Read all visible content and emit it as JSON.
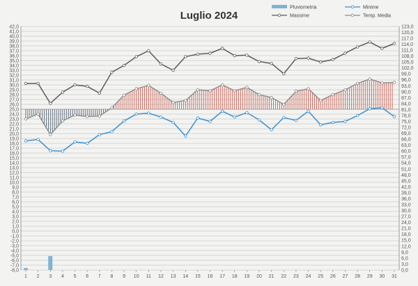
{
  "chart_data": {
    "type": "line",
    "title": "Luglio 2024",
    "categories": [
      "1",
      "2",
      "3",
      "4",
      "5",
      "6",
      "7",
      "8",
      "9",
      "10",
      "11",
      "12",
      "13",
      "14",
      "15",
      "16",
      "17",
      "18",
      "19",
      "20",
      "21",
      "22",
      "23",
      "24",
      "25",
      "26",
      "27",
      "28",
      "29",
      "30",
      "31"
    ],
    "left_axis": {
      "min": -8,
      "max": 42,
      "step": 1
    },
    "right_axis": {
      "min": 0,
      "max": 123,
      "step": 3
    },
    "series": [
      {
        "name": "Pluviometria",
        "kind": "bar",
        "axis": "right",
        "color": "#7fb3d5",
        "values": [
          1,
          0,
          7,
          0,
          0,
          0,
          0,
          0,
          0,
          0,
          0,
          0,
          0,
          0,
          0,
          0,
          0,
          0,
          0,
          0,
          0,
          0,
          0,
          0,
          0,
          0,
          0,
          0,
          0,
          0,
          0
        ]
      },
      {
        "name": "Minime",
        "kind": "line",
        "axis": "left",
        "color": "#3a8fd0",
        "values": [
          18.5,
          18.8,
          16.5,
          16.4,
          18.3,
          18.0,
          19.8,
          20.4,
          22.6,
          24.0,
          24.2,
          23.4,
          22.3,
          19.5,
          23.2,
          22.5,
          24.6,
          23.4,
          24.3,
          22.8,
          20.8,
          23.3,
          22.7,
          24.6,
          21.8,
          22.3,
          22.5,
          23.7,
          25.1,
          25.3,
          23.5
        ]
      },
      {
        "name": "Massime",
        "kind": "line",
        "axis": "left",
        "color": "#5a5a5a",
        "values": [
          30.3,
          30.3,
          26.2,
          28.5,
          30.0,
          29.7,
          28.3,
          32.6,
          34.0,
          35.8,
          37.0,
          34.3,
          33.0,
          35.8,
          36.3,
          36.5,
          37.5,
          36.0,
          36.1,
          34.8,
          34.4,
          32.3,
          35.4,
          35.5,
          34.7,
          35.2,
          36.5,
          37.8,
          38.8,
          37.5,
          38.5
        ]
      },
      {
        "name": "Temp. Media",
        "kind": "line",
        "axis": "left",
        "color": "#8a8a8a",
        "values": [
          23.0,
          24.0,
          19.8,
          22.6,
          23.8,
          23.5,
          23.6,
          25.3,
          27.9,
          29.2,
          29.9,
          28.3,
          26.4,
          26.8,
          29.0,
          28.8,
          30.0,
          28.8,
          29.5,
          28.0,
          27.4,
          26.0,
          28.7,
          29.2,
          26.8,
          28.0,
          29.0,
          30.3,
          31.2,
          30.4,
          30.5
        ]
      }
    ],
    "reference_value": 25.0,
    "hatch_above_color": "#c0392b",
    "hatch_below_color": "#2c3e50",
    "grid": true,
    "legend": "top-right"
  }
}
